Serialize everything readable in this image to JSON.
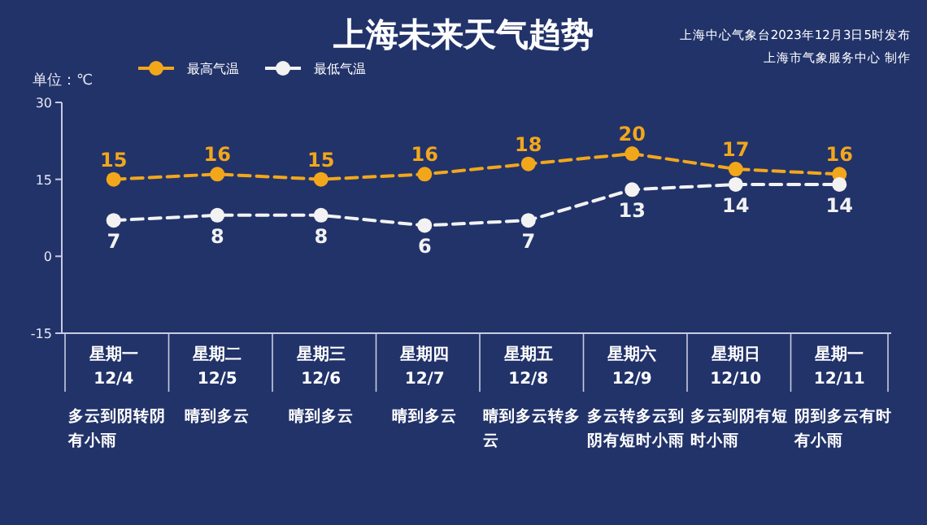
{
  "chart_data": {
    "type": "line",
    "title": "上海未来天气趋势",
    "ylabel": "单位：℃",
    "categories": [
      "星期一 12/4",
      "星期二 12/5",
      "星期三 12/6",
      "星期四 12/7",
      "星期五 12/8",
      "星期六 12/9",
      "星期日 12/10",
      "星期一 12/11"
    ],
    "series": [
      {
        "name": "最高气温",
        "color": "#f2a71b",
        "values": [
          15,
          16,
          15,
          16,
          18,
          20,
          17,
          16
        ]
      },
      {
        "name": "最低气温",
        "color": "#f2f2f2",
        "values": [
          7,
          8,
          8,
          6,
          7,
          13,
          14,
          14
        ]
      }
    ],
    "ylim": [
      -15,
      30
    ],
    "yticks": [
      -15,
      0,
      15,
      30
    ],
    "data_labels": true,
    "legend": "top left",
    "marker": "circle",
    "line_style": "dashed",
    "annotations": [
      "上海中心气象台2023年12月3日5时发布",
      "上海市气象服务中心 制作",
      "多云到阴转阴有小雨",
      "晴到多云",
      "晴到多云",
      "晴到多云",
      "晴到多云转多云",
      "多云转多云到阴有短时小雨",
      "多云到阴有短时小雨",
      "阴到多云有时有小雨"
    ]
  }
}
